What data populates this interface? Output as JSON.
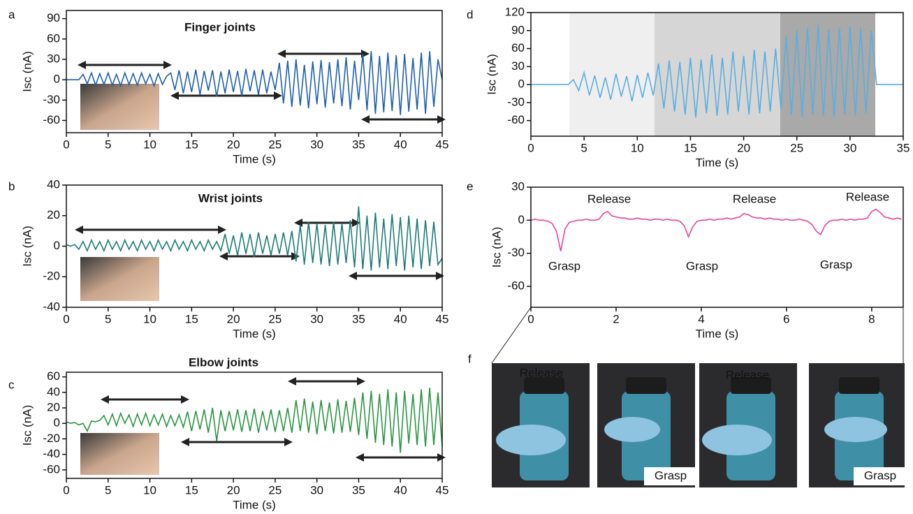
{
  "chart_data": [
    {
      "type": "line",
      "label": "a",
      "title": "Finger joints",
      "xlabel": "Time (s)",
      "ylabel": "Isc (nA)",
      "color": "#1f5fae",
      "xlim": [
        0,
        45
      ],
      "ylim": [
        -78,
        102
      ],
      "xticks": [
        0,
        5,
        10,
        15,
        20,
        25,
        30,
        35,
        40,
        45
      ],
      "yticks": [
        -60,
        -30,
        0,
        30,
        60,
        90
      ],
      "x": [
        0,
        0.5,
        1,
        1.5,
        2,
        2.5,
        3,
        3.5,
        4,
        4.5,
        5,
        5.5,
        6,
        6.5,
        7,
        7.5,
        8,
        8.5,
        9,
        9.5,
        10,
        10.5,
        11,
        11.5,
        12,
        12.5,
        13,
        13.5,
        14,
        14.5,
        15,
        15.5,
        16,
        16.5,
        17,
        17.5,
        18,
        18.5,
        19,
        19.5,
        20,
        20.5,
        21,
        21.5,
        22,
        22.5,
        23,
        23.5,
        24,
        24.5,
        25,
        25.5,
        26,
        26.5,
        27,
        27.5,
        28,
        28.5,
        29,
        29.5,
        30,
        30.5,
        31,
        31.5,
        32,
        32.5,
        33,
        33.5,
        34,
        34.5,
        35,
        35.5,
        36,
        36.5,
        37,
        37.5,
        38,
        38.5,
        39,
        39.5,
        40,
        40.5,
        41,
        41.5,
        42,
        42.5,
        43,
        43.5,
        44,
        44.5,
        45
      ],
      "values": [
        0,
        0,
        0,
        0,
        8,
        -6,
        10,
        -8,
        9,
        -7,
        10,
        -8,
        8,
        -9,
        10,
        -7,
        9,
        -8,
        10,
        -6,
        8,
        -9,
        9,
        -7,
        5,
        10,
        -15,
        14,
        -20,
        12,
        -18,
        15,
        -22,
        13,
        -16,
        14,
        -25,
        12,
        -20,
        15,
        -18,
        13,
        -24,
        16,
        -17,
        14,
        -22,
        15,
        -20,
        12,
        -15,
        25,
        -35,
        28,
        -40,
        30,
        -38,
        22,
        -42,
        27,
        -36,
        29,
        -41,
        26,
        -35,
        30,
        -39,
        33,
        -44,
        28,
        -30,
        38,
        -45,
        42,
        -50,
        35,
        -48,
        40,
        -46,
        36,
        -52,
        38,
        -47,
        32,
        -44,
        40,
        -50,
        42,
        -40,
        30,
        0
      ]
    },
    {
      "type": "line",
      "label": "b",
      "title": "Wrist joints",
      "xlabel": "Time (s)",
      "ylabel": "Isc (nA)",
      "color": "#1e7b78",
      "xlim": [
        0,
        45
      ],
      "ylim": [
        -40,
        40
      ],
      "xticks": [
        0,
        5,
        10,
        15,
        20,
        25,
        30,
        35,
        40,
        45
      ],
      "yticks": [
        -40,
        -20,
        0,
        20,
        40
      ],
      "x": [
        0,
        0.5,
        1,
        1.5,
        2,
        2.5,
        3,
        3.5,
        4,
        4.5,
        5,
        5.5,
        6,
        6.5,
        7,
        7.5,
        8,
        8.5,
        9,
        9.5,
        10,
        10.5,
        11,
        11.5,
        12,
        12.5,
        13,
        13.5,
        14,
        14.5,
        15,
        15.5,
        16,
        16.5,
        17,
        17.5,
        18,
        18.5,
        19,
        19.5,
        20,
        20.5,
        21,
        21.5,
        22,
        22.5,
        23,
        23.5,
        24,
        24.5,
        25,
        25.5,
        26,
        26.5,
        27,
        27.5,
        28,
        28.5,
        29,
        29.5,
        30,
        30.5,
        31,
        31.5,
        32,
        32.5,
        33,
        33.5,
        34,
        34.5,
        35,
        35.5,
        36,
        36.5,
        37,
        37.5,
        38,
        38.5,
        39,
        39.5,
        40,
        40.5,
        41,
        41.5,
        42,
        42.5,
        43,
        43.5,
        44,
        44.5,
        45
      ],
      "values": [
        1,
        0,
        1,
        -2,
        3,
        -3,
        4,
        -2,
        3,
        -3,
        4,
        -2,
        3,
        -3,
        4,
        -2,
        3,
        -3,
        4,
        -2,
        3,
        -3,
        4,
        -2,
        3,
        -3,
        4,
        -2,
        3,
        -3,
        4,
        -2,
        3,
        -3,
        4,
        -2,
        3,
        -3,
        8,
        -5,
        7,
        -6,
        9,
        -5,
        8,
        -7,
        9,
        -5,
        7,
        -6,
        8,
        -5,
        9,
        -6,
        10,
        -10,
        14,
        -12,
        16,
        -11,
        15,
        -12,
        14,
        -13,
        16,
        -12,
        15,
        -11,
        17,
        -14,
        26,
        -15,
        20,
        -16,
        22,
        -14,
        18,
        -15,
        21,
        -13,
        19,
        -16,
        20,
        -14,
        18,
        -15,
        17,
        -13,
        16,
        -12,
        -8
      ]
    },
    {
      "type": "line",
      "label": "c",
      "title": "Elbow joints",
      "xlabel": "Time (s)",
      "ylabel": "Isc (nA)",
      "color": "#2c9444",
      "xlim": [
        0,
        45
      ],
      "ylim": [
        -71,
        66
      ],
      "xticks": [
        0,
        5,
        10,
        15,
        20,
        25,
        30,
        35,
        40,
        45
      ],
      "yticks": [
        -60,
        -40,
        -20,
        0,
        20,
        40,
        60
      ],
      "x": [
        0,
        0.5,
        1,
        1.5,
        2,
        2.5,
        3,
        3.5,
        4,
        4.5,
        5,
        5.5,
        6,
        6.5,
        7,
        7.5,
        8,
        8.5,
        9,
        9.5,
        10,
        10.5,
        11,
        11.5,
        12,
        12.5,
        13,
        13.5,
        14,
        14.5,
        15,
        15.5,
        16,
        16.5,
        17,
        17.5,
        18,
        18.5,
        19,
        19.5,
        20,
        20.5,
        21,
        21.5,
        22,
        22.5,
        23,
        23.5,
        24,
        24.5,
        25,
        25.5,
        26,
        26.5,
        27,
        27.5,
        28,
        28.5,
        29,
        29.5,
        30,
        30.5,
        31,
        31.5,
        32,
        32.5,
        33,
        33.5,
        34,
        34.5,
        35,
        35.5,
        36,
        36.5,
        37,
        37.5,
        38,
        38.5,
        39,
        39.5,
        40,
        40.5,
        41,
        41.5,
        42,
        42.5,
        43,
        43.5,
        44,
        44.5,
        45
      ],
      "values": [
        2,
        0,
        1,
        -2,
        0,
        -10,
        3,
        2,
        4,
        10,
        -2,
        12,
        -3,
        13,
        0,
        11,
        -4,
        12,
        -2,
        13,
        -3,
        11,
        -2,
        12,
        -4,
        10,
        -3,
        11,
        -5,
        15,
        -10,
        16,
        -8,
        18,
        -12,
        20,
        -23,
        17,
        -10,
        16,
        -9,
        18,
        -11,
        17,
        -10,
        19,
        -12,
        16,
        -9,
        18,
        -11,
        17,
        -10,
        20,
        -12,
        30,
        -10,
        32,
        -12,
        28,
        -14,
        30,
        -10,
        27,
        -13,
        31,
        -12,
        29,
        -11,
        33,
        -15,
        40,
        -20,
        42,
        -25,
        38,
        -28,
        44,
        -30,
        40,
        -38,
        42,
        -26,
        38,
        -28,
        44,
        -30,
        46,
        -28,
        40,
        -30
      ]
    },
    {
      "type": "line",
      "label": "d",
      "xlabel": "Time (s)",
      "ylabel": "Isc (nA)",
      "color": "#5aaee0",
      "xlim": [
        0,
        35
      ],
      "ylim": [
        -86,
        120
      ],
      "xticks": [
        0,
        5,
        10,
        15,
        20,
        25,
        30,
        35
      ],
      "yticks": [
        -60,
        -30,
        0,
        30,
        60,
        90,
        120
      ],
      "x": [
        0,
        0.5,
        1,
        1.5,
        2,
        2.5,
        3,
        3.5,
        4,
        4.5,
        5,
        5.5,
        6,
        6.5,
        7,
        7.5,
        8,
        8.5,
        9,
        9.5,
        10,
        10.5,
        11,
        11.5,
        12,
        12.5,
        13,
        13.5,
        14,
        14.5,
        15,
        15.5,
        16,
        16.5,
        17,
        17.5,
        18,
        18.5,
        19,
        19.5,
        20,
        20.5,
        21,
        21.5,
        22,
        22.5,
        23,
        23.5,
        24,
        24.5,
        25,
        25.5,
        26,
        26.5,
        27,
        27.5,
        28,
        28.5,
        29,
        29.5,
        30,
        30.5,
        31,
        31.5,
        32,
        32.5,
        33,
        33.5,
        34,
        34.5,
        35
      ],
      "values": [
        0,
        0,
        0,
        0,
        0,
        0,
        0,
        0,
        8,
        -10,
        20,
        -18,
        15,
        -22,
        12,
        -25,
        18,
        -20,
        14,
        -28,
        16,
        -22,
        20,
        -18,
        35,
        -40,
        40,
        -45,
        38,
        -50,
        45,
        -55,
        42,
        -48,
        50,
        -52,
        45,
        -50,
        55,
        -45,
        48,
        -50,
        58,
        -48,
        55,
        -45,
        60,
        -40,
        80,
        -50,
        90,
        -55,
        95,
        -50,
        100,
        -52,
        92,
        -55,
        95,
        -50,
        98,
        -52,
        94,
        -48,
        90,
        0,
        0,
        0,
        0,
        0,
        0
      ]
    },
    {
      "type": "line",
      "label": "e",
      "xlabel": "Time (s)",
      "ylabel": "Isc (nA)",
      "color": "#e8449a",
      "xlim": [
        0,
        8.74
      ],
      "ylim": [
        -79,
        30
      ],
      "xticks": [
        0,
        2,
        4,
        6,
        8
      ],
      "yticks": [
        -60,
        -30,
        0,
        30
      ],
      "annotations": [
        "Release",
        "Grasp",
        "Release",
        "Grasp",
        "Release",
        "Grasp"
      ],
      "x": [
        0,
        0.1,
        0.2,
        0.3,
        0.4,
        0.5,
        0.6,
        0.7,
        0.8,
        0.9,
        1,
        1.1,
        1.2,
        1.3,
        1.4,
        1.5,
        1.6,
        1.7,
        1.8,
        1.9,
        2,
        2.1,
        2.2,
        2.3,
        2.4,
        2.5,
        2.6,
        2.7,
        2.8,
        2.9,
        3,
        3.1,
        3.2,
        3.3,
        3.4,
        3.5,
        3.6,
        3.7,
        3.8,
        3.9,
        4,
        4.1,
        4.2,
        4.3,
        4.4,
        4.5,
        4.6,
        4.7,
        4.8,
        4.9,
        5,
        5.1,
        5.2,
        5.3,
        5.4,
        5.5,
        5.6,
        5.7,
        5.8,
        5.9,
        6,
        6.1,
        6.2,
        6.3,
        6.4,
        6.5,
        6.6,
        6.7,
        6.8,
        6.9,
        7,
        7.1,
        7.2,
        7.3,
        7.4,
        7.5,
        7.6,
        7.7,
        7.8,
        7.9,
        8,
        8.1,
        8.2,
        8.3,
        8.4,
        8.5,
        8.6,
        8.7
      ],
      "values": [
        0,
        1,
        0,
        0,
        -1,
        -3,
        -10,
        -28,
        -8,
        -2,
        -1,
        0,
        0,
        1,
        0,
        0,
        1,
        6,
        8,
        4,
        3,
        2,
        2,
        1,
        1,
        2,
        1,
        1,
        0,
        1,
        1,
        0,
        1,
        0,
        0,
        -1,
        -5,
        -15,
        -6,
        -1,
        0,
        0,
        1,
        0,
        1,
        1,
        2,
        1,
        2,
        3,
        6,
        5,
        3,
        2,
        2,
        1,
        2,
        1,
        1,
        0,
        1,
        0,
        0,
        1,
        0,
        -1,
        -4,
        -10,
        -13,
        -5,
        -1,
        0,
        0,
        1,
        0,
        1,
        0,
        1,
        1,
        2,
        8,
        10,
        7,
        3,
        2,
        1,
        2,
        1
      ]
    }
  ],
  "panel_f": {
    "label": "f",
    "captions": [
      "Release",
      "Grasp",
      "Release",
      "Grasp"
    ]
  }
}
